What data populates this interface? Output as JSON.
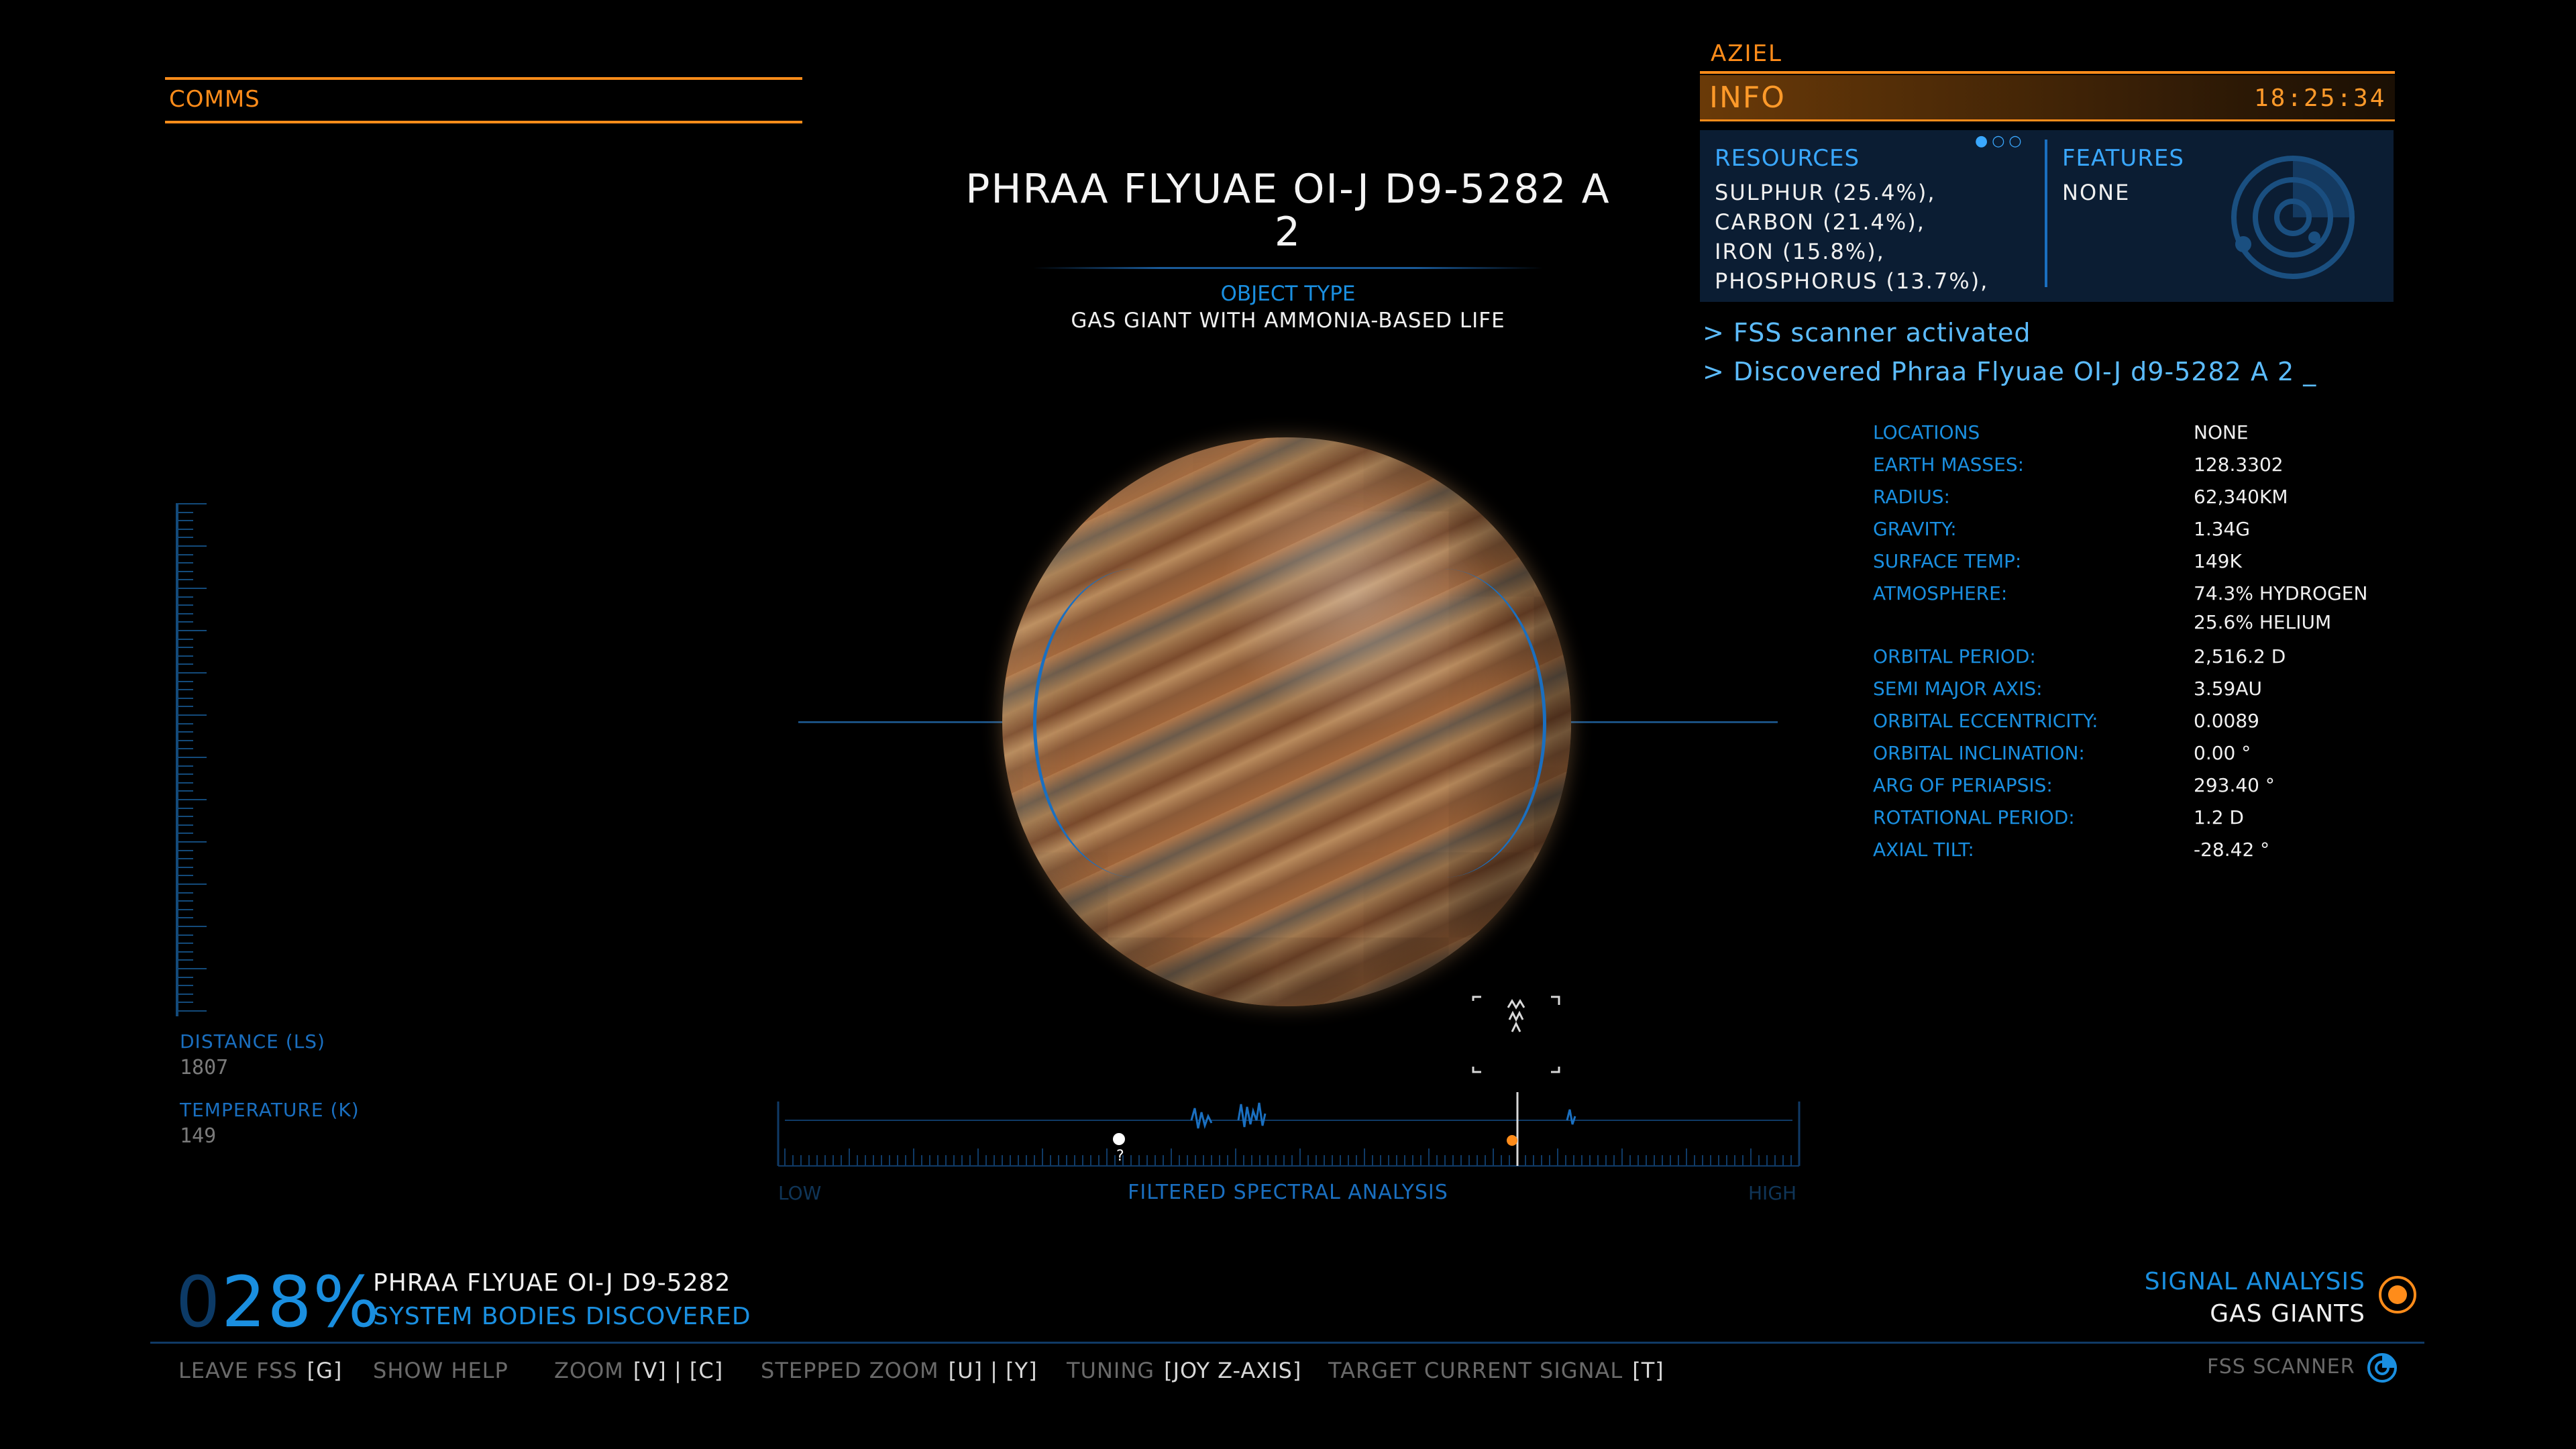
{
  "comms": {
    "label": "COMMS"
  },
  "body": {
    "title_line1": "PHRAA FLYUAE OI-J D9-5282 A",
    "title_line2": "2",
    "object_type_label": "OBJECT TYPE",
    "object_type_value": "GAS GIANT WITH AMMONIA-BASED LIFE"
  },
  "left_gauge": {
    "distance_label": "DISTANCE (LS)",
    "distance_value": "1807",
    "temperature_label": "TEMPERATURE (K)",
    "temperature_value": "149"
  },
  "info": {
    "commander": "AZIEL",
    "label": "INFO",
    "time": "18:25:34",
    "pager": "●○○",
    "resources_label": "RESOURCES",
    "resources": [
      "SULPHUR (25.4%),",
      "CARBON (21.4%),",
      "IRON (15.8%),",
      "PHOSPHORUS (13.7%),"
    ],
    "features_label": "FEATURES",
    "features_value": "NONE",
    "features_icon": "radar-icon"
  },
  "log": [
    "> FSS scanner activated",
    "> Discovered Phraa Flyuae OI-J d9-5282 A 2  _"
  ],
  "stats": [
    {
      "label": "LOCATIONS",
      "value": "NONE"
    },
    {
      "label": "EARTH MASSES:",
      "value": "128.3302"
    },
    {
      "label": "RADIUS:",
      "value": "62,340KM"
    },
    {
      "label": "GRAVITY:",
      "value": "1.34G"
    },
    {
      "label": "SURFACE TEMP:",
      "value": "149K"
    },
    {
      "label": "ATMOSPHERE:",
      "value": "74.3% HYDROGEN"
    },
    {
      "label": "",
      "value": "25.6% HELIUM"
    },
    {
      "label": "ORBITAL PERIOD:",
      "value": "2,516.2 D"
    },
    {
      "label": "SEMI MAJOR AXIS:",
      "value": "3.59AU"
    },
    {
      "label": "ORBITAL ECCENTRICITY:",
      "value": "0.0089"
    },
    {
      "label": "ORBITAL INCLINATION:",
      "value": "0.00 °"
    },
    {
      "label": "ARG OF PERIAPSIS:",
      "value": "293.40 °"
    },
    {
      "label": "ROTATIONAL PERIOD:",
      "value": "1.2 D"
    },
    {
      "label": "AXIAL TILT:",
      "value": "-28.42 °"
    }
  ],
  "spectrum": {
    "low_label": "LOW",
    "high_label": "HIGH",
    "title": "FILTERED SPECTRAL ANALYSIS",
    "unknown_marker": "?"
  },
  "progress": {
    "dim_digit": "0",
    "percent": "28%",
    "system_name": "PHRAA FLYUAE OI-J D9-5282",
    "bodies_label": "SYSTEM BODIES DISCOVERED"
  },
  "signal": {
    "label": "SIGNAL ANALYSIS",
    "value": "GAS GIANTS",
    "accent": "#ff8c1a"
  },
  "help": [
    {
      "key": "LEAVE FSS",
      "bind": "[G]"
    },
    {
      "key": "SHOW HELP",
      "bind": ""
    },
    {
      "key": "ZOOM",
      "bind": "[V] | [C]"
    },
    {
      "key": "STEPPED ZOOM",
      "bind": "[U] | [Y]"
    },
    {
      "key": "TUNING",
      "bind": "[JOY Z-AXIS]"
    },
    {
      "key": "TARGET CURRENT SIGNAL",
      "bind": "[T]"
    }
  ],
  "fss": {
    "label": "FSS SCANNER",
    "icon": "fss-scanner-icon"
  },
  "colors": {
    "orange": "#ff8c1a",
    "blue": "#1a8fe0",
    "light_blue": "#5cbcff"
  }
}
